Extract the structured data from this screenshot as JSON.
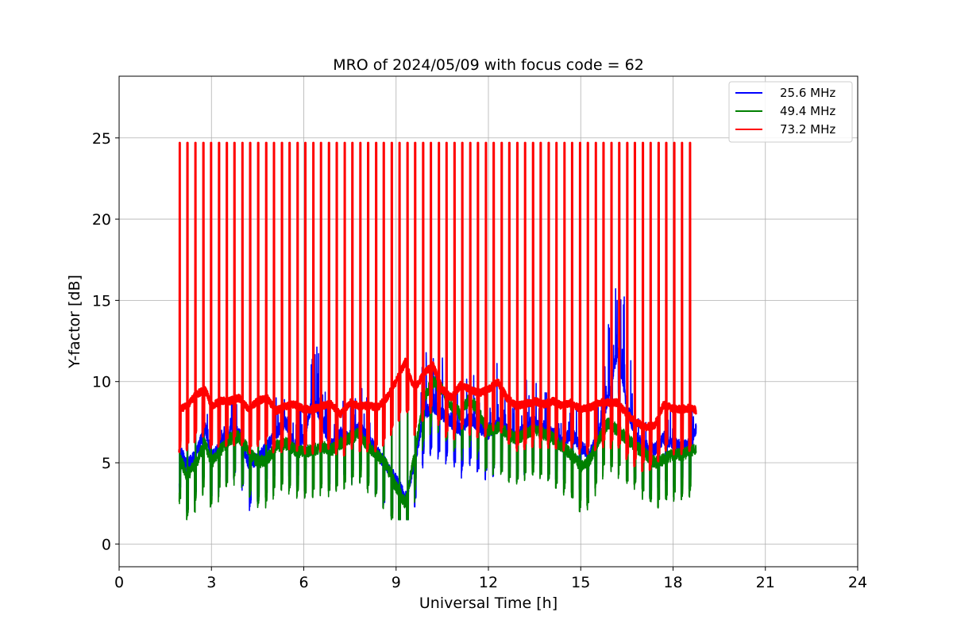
{
  "chart_data": {
    "type": "line",
    "title": "MRO of 2024/05/09 with focus code = 62",
    "xlabel": "Universal Time [h]",
    "ylabel": "Y-factor [dB]",
    "xlim": [
      0,
      24
    ],
    "ylim": [
      -1.4,
      28.8
    ],
    "xticks": [
      0,
      3,
      6,
      9,
      12,
      15,
      18,
      21,
      24
    ],
    "yticks": [
      0,
      5,
      10,
      15,
      20,
      25
    ],
    "grid": true,
    "legend": "top-right",
    "calibration_spikes": {
      "x": [
        1.97,
        2.22,
        2.48,
        2.74,
        2.99,
        3.25,
        3.5,
        3.75,
        4.01,
        4.26,
        4.52,
        4.78,
        5.03,
        5.29,
        5.54,
        5.8,
        6.05,
        6.31,
        6.56,
        6.82,
        7.07,
        7.33,
        7.58,
        7.84,
        8.09,
        8.35,
        8.6,
        8.86,
        9.11,
        9.37,
        9.62,
        9.88,
        10.13,
        10.39,
        10.64,
        10.9,
        11.15,
        11.41,
        11.66,
        11.92,
        12.17,
        12.43,
        12.68,
        12.94,
        13.19,
        13.45,
        13.7,
        13.96,
        14.21,
        14.47,
        14.72,
        14.98,
        15.23,
        15.49,
        15.74,
        16.0,
        16.25,
        16.51,
        16.76,
        17.02,
        17.27,
        17.53,
        17.78,
        18.04,
        18.29,
        18.55
      ],
      "peak": 24.7
    },
    "series": [
      {
        "name": "25.6 MHz",
        "color": "#0000ff",
        "x": [
          1.95,
          2.2,
          2.5,
          2.8,
          3.0,
          3.3,
          3.6,
          3.9,
          4.2,
          4.5,
          4.8,
          5.1,
          5.4,
          5.7,
          6.0,
          6.3,
          6.6,
          6.9,
          7.2,
          7.5,
          7.8,
          8.1,
          8.4,
          8.7,
          9.0,
          9.3,
          9.6,
          9.9,
          10.2,
          10.5,
          10.8,
          11.1,
          11.4,
          11.7,
          12.0,
          12.3,
          12.6,
          12.9,
          13.2,
          13.5,
          13.8,
          14.1,
          14.4,
          14.7,
          15.0,
          15.3,
          15.6,
          15.9,
          16.2,
          16.5,
          16.8,
          17.1,
          17.4,
          17.7,
          18.0,
          18.3,
          18.6,
          18.75
        ],
        "values": [
          6.0,
          4.8,
          5.5,
          7.2,
          5.3,
          6.2,
          7.0,
          6.8,
          5.0,
          5.2,
          6.0,
          6.8,
          7.5,
          6.0,
          6.5,
          9.0,
          7.5,
          6.0,
          6.8,
          6.5,
          7.2,
          6.5,
          5.6,
          4.8,
          4.0,
          2.8,
          5.0,
          8.0,
          8.5,
          8.0,
          7.5,
          7.0,
          7.8,
          7.2,
          6.8,
          7.5,
          7.0,
          6.5,
          7.2,
          7.5,
          7.0,
          6.8,
          6.2,
          6.8,
          6.0,
          5.5,
          7.0,
          9.0,
          12.0,
          8.5,
          6.5,
          6.0,
          5.8,
          6.5,
          6.2,
          6.0,
          6.2,
          7.2
        ]
      },
      {
        "name": "49.4 MHz",
        "color": "#008000",
        "x": [
          1.95,
          2.2,
          2.5,
          2.8,
          3.0,
          3.3,
          3.6,
          3.9,
          4.2,
          4.5,
          4.8,
          5.1,
          5.4,
          5.7,
          6.0,
          6.3,
          6.6,
          6.9,
          7.2,
          7.5,
          7.8,
          8.1,
          8.4,
          8.7,
          9.0,
          9.3,
          9.6,
          9.9,
          10.2,
          10.5,
          10.8,
          11.1,
          11.4,
          11.7,
          12.0,
          12.3,
          12.6,
          12.9,
          13.2,
          13.5,
          13.8,
          14.1,
          14.4,
          14.7,
          15.0,
          15.3,
          15.6,
          15.9,
          16.2,
          16.5,
          16.8,
          17.1,
          17.4,
          17.7,
          18.0,
          18.3,
          18.6,
          18.75
        ],
        "values": [
          5.5,
          4.2,
          5.0,
          6.2,
          5.0,
          5.8,
          6.5,
          6.6,
          5.8,
          5.0,
          5.2,
          6.0,
          6.2,
          5.8,
          5.6,
          5.8,
          6.0,
          5.8,
          6.2,
          6.5,
          6.8,
          6.0,
          5.5,
          4.8,
          3.5,
          2.5,
          5.5,
          9.0,
          10.0,
          9.5,
          8.5,
          8.0,
          9.0,
          8.0,
          7.0,
          7.2,
          6.8,
          6.5,
          6.8,
          7.0,
          6.8,
          6.5,
          6.0,
          5.5,
          4.8,
          5.2,
          6.5,
          7.5,
          7.0,
          6.5,
          6.0,
          5.5,
          5.0,
          5.2,
          5.5,
          5.5,
          5.8,
          5.7
        ]
      },
      {
        "name": "73.2 MHz",
        "color": "#ff0000",
        "x": [
          1.95,
          2.2,
          2.5,
          2.8,
          3.0,
          3.3,
          3.6,
          3.9,
          4.2,
          4.5,
          4.8,
          5.1,
          5.4,
          5.7,
          6.0,
          6.3,
          6.6,
          6.9,
          7.2,
          7.5,
          7.8,
          8.1,
          8.4,
          8.7,
          9.0,
          9.3,
          9.6,
          9.9,
          10.2,
          10.5,
          10.8,
          11.1,
          11.4,
          11.7,
          12.0,
          12.3,
          12.6,
          12.9,
          13.2,
          13.5,
          13.8,
          14.1,
          14.4,
          14.7,
          15.0,
          15.3,
          15.6,
          15.9,
          16.2,
          16.5,
          16.8,
          17.1,
          17.4,
          17.7,
          18.0,
          18.3,
          18.6,
          18.75
        ],
        "values": [
          8.3,
          8.5,
          9.2,
          9.5,
          8.5,
          8.8,
          8.8,
          9.0,
          8.3,
          8.8,
          9.0,
          8.2,
          8.5,
          8.6,
          8.3,
          8.3,
          8.5,
          8.6,
          8.0,
          8.7,
          8.5,
          8.5,
          8.4,
          9.0,
          10.0,
          11.2,
          9.5,
          10.5,
          11.0,
          9.5,
          9.0,
          9.8,
          9.5,
          9.3,
          9.5,
          10.0,
          9.0,
          8.5,
          8.6,
          8.8,
          8.6,
          8.8,
          8.5,
          8.7,
          8.3,
          8.4,
          8.7,
          8.7,
          8.7,
          8.0,
          7.5,
          7.2,
          7.3,
          8.6,
          8.3,
          8.3,
          8.4,
          8.2
        ]
      }
    ]
  }
}
